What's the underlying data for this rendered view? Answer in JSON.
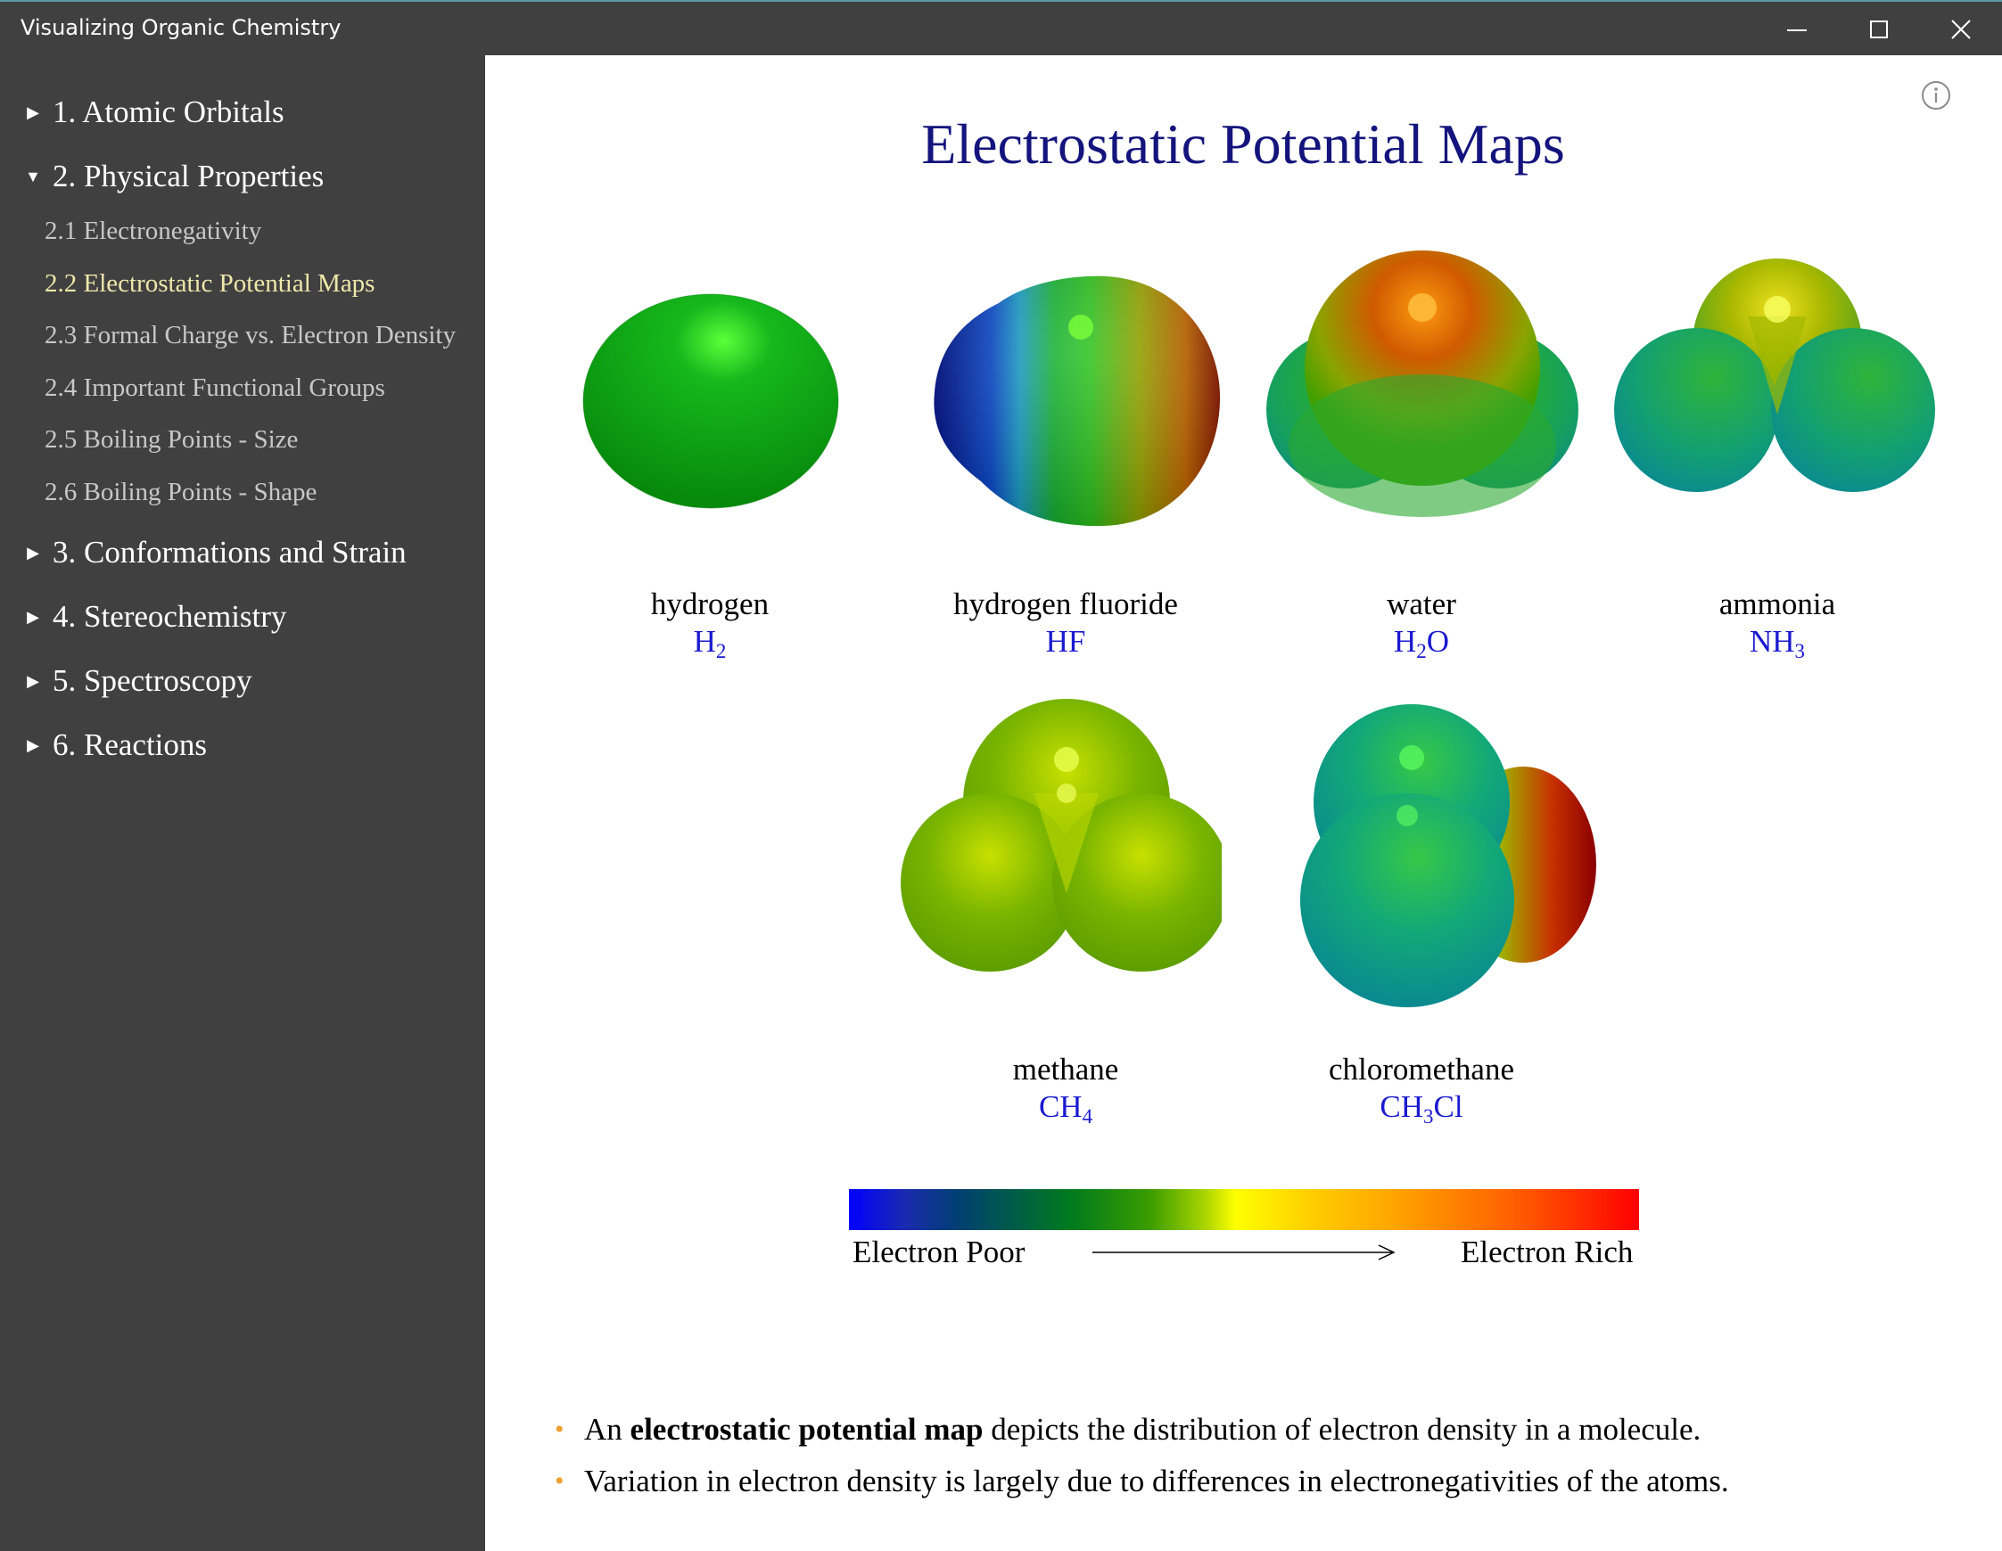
{
  "window": {
    "title": "Visualizing Organic Chemistry",
    "controls": [
      "minimize-icon",
      "maximize-icon",
      "close-icon"
    ]
  },
  "sidebar": {
    "chapters": [
      {
        "label": "1. Atomic Orbitals",
        "expanded": false
      },
      {
        "label": "2. Physical Properties",
        "expanded": true,
        "sections": [
          {
            "label": "2.1 Electronegativity"
          },
          {
            "label": "2.2 Electrostatic Potential Maps",
            "active": true
          },
          {
            "label": "2.3 Formal Charge vs. Electron Density"
          },
          {
            "label": "2.4 Important Functional Groups"
          },
          {
            "label": "2.5 Boiling Points - Size"
          },
          {
            "label": "2.6 Boiling Points - Shape"
          }
        ]
      },
      {
        "label": "3. Conformations and Strain",
        "expanded": false
      },
      {
        "label": "4. Stereochemistry",
        "expanded": false
      },
      {
        "label": "5. Spectroscopy",
        "expanded": false
      },
      {
        "label": "6. Reactions",
        "expanded": false
      }
    ]
  },
  "main": {
    "title": "Electrostatic Potential Maps",
    "info_icon": "info-icon",
    "molecules": [
      {
        "name": "hydrogen",
        "formula": {
          "parts": [
            "H",
            "2"
          ]
        }
      },
      {
        "name": "hydrogen fluoride",
        "formula": {
          "parts": [
            "HF"
          ]
        }
      },
      {
        "name": "water",
        "formula": {
          "parts": [
            "H",
            "2",
            "O"
          ]
        }
      },
      {
        "name": "ammonia",
        "formula": {
          "parts": [
            "NH",
            "3"
          ]
        }
      },
      {
        "name": "methane",
        "formula": {
          "parts": [
            "CH",
            "4"
          ]
        }
      },
      {
        "name": "chloromethane",
        "formula": {
          "parts": [
            "CH",
            "3",
            "Cl"
          ]
        }
      }
    ],
    "color_scale": {
      "left_label": "Electron Poor",
      "right_label": "Electron Rich",
      "colors": [
        "#0000ff",
        "#007a1e",
        "#ffff00",
        "#ffa000",
        "#ff0000"
      ]
    },
    "bullets": [
      {
        "pre": "An ",
        "bold": "electrostatic potential map",
        "post": " depicts the distribution of electron density in a molecule."
      },
      {
        "pre": "Variation in electron density is largely due to differences in electronegativities of the atoms.",
        "bold": "",
        "post": ""
      }
    ]
  }
}
